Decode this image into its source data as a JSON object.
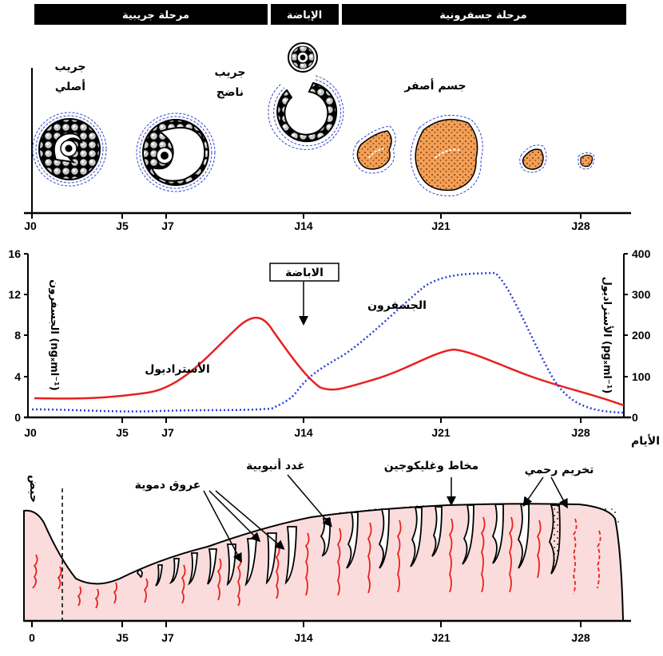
{
  "phases": {
    "follicular": "مرحلة جريبية",
    "ovulation": "الإباضة",
    "luteal": "مرحلة جسفرونية"
  },
  "ovary": {
    "primordial_follicle_1": "جريب",
    "primordial_follicle_2": "أصلي",
    "mature_follicle_1": "جريب",
    "mature_follicle_2": "ناضج",
    "corpus_luteum": "جسم أصفر"
  },
  "day_ticks": [
    "J0",
    "J5",
    "J7",
    "J14",
    "J21",
    "J28"
  ],
  "day_ticks_bottom": [
    "0",
    "J5",
    "J7",
    "J14",
    "J21",
    "J28"
  ],
  "hormones": {
    "left_axis_ticks": [
      "16",
      "12",
      "8",
      "4",
      "0"
    ],
    "right_axis_ticks": [
      "400",
      "300",
      "200",
      "100",
      "0"
    ],
    "left_axis_label": "الجسفرون (ngₓml⁻¹)",
    "right_axis_label": "الأستراديول (pgₓml⁻¹)",
    "ovulation_label": "الاباضة",
    "progesterone_label": "الجسفرون",
    "estradiol_label": "الأستراديول",
    "days_label": "الأيام",
    "estradiol_color": "#e8211f",
    "progesterone_color": "#2b3fd6"
  },
  "uterus": {
    "menses": "حيض",
    "blood_vessels": "عروق دموية",
    "tubular_glands": "غدد أنبوبية",
    "mucus_glycogen": "مخاط وغليكوجين",
    "uterine_lace": "تخريم رحمي"
  }
}
